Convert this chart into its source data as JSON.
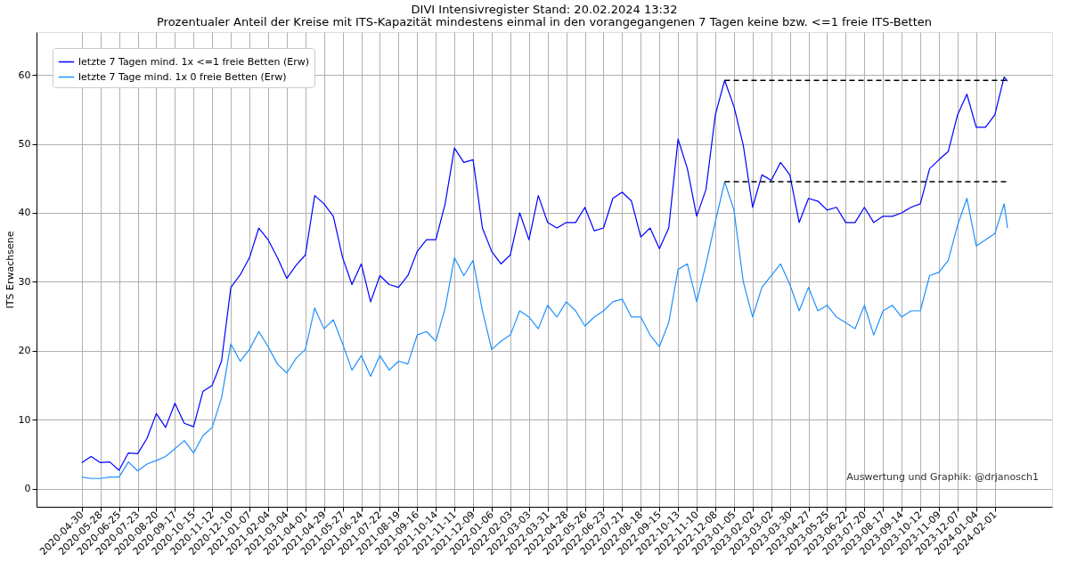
{
  "chart_data": {
    "type": "line",
    "title": "DIVI Intensivregister Stand: 20.02.2024 13:32",
    "subtitle": "Prozentualer Anteil der Kreise mit ITS-Kapazität mindestens einmal in den vorangegangenen 7 Tagen keine bzw. <=1 freie ITS-Betten",
    "ylabel": "ITS Erwachsene",
    "annotations": [
      "Auswertung und Graphik: @drjanosch1"
    ],
    "x": [
      "2020-04-30",
      "2020-05-14",
      "2020-05-28",
      "2020-06-11",
      "2020-06-25",
      "2020-07-09",
      "2020-07-23",
      "2020-08-06",
      "2020-08-20",
      "2020-09-03",
      "2020-09-17",
      "2020-10-01",
      "2020-10-15",
      "2020-10-29",
      "2020-11-12",
      "2020-11-26",
      "2020-12-10",
      "2020-12-24",
      "2021-01-07",
      "2021-01-21",
      "2021-02-04",
      "2021-02-18",
      "2021-03-04",
      "2021-03-18",
      "2021-04-01",
      "2021-04-15",
      "2021-04-29",
      "2021-05-13",
      "2021-05-27",
      "2021-06-10",
      "2021-06-24",
      "2021-07-08",
      "2021-07-22",
      "2021-08-05",
      "2021-08-19",
      "2021-09-02",
      "2021-09-16",
      "2021-09-30",
      "2021-10-14",
      "2021-10-28",
      "2021-11-11",
      "2021-11-25",
      "2021-12-09",
      "2021-12-23",
      "2022-01-06",
      "2022-01-20",
      "2022-02-03",
      "2022-02-17",
      "2022-03-03",
      "2022-03-17",
      "2022-03-31",
      "2022-04-14",
      "2022-04-28",
      "2022-05-12",
      "2022-05-26",
      "2022-06-09",
      "2022-06-23",
      "2022-07-07",
      "2022-07-21",
      "2022-08-04",
      "2022-08-18",
      "2022-09-01",
      "2022-09-15",
      "2022-09-29",
      "2022-10-13",
      "2022-10-27",
      "2022-11-10",
      "2022-11-24",
      "2022-12-08",
      "2022-12-22",
      "2023-01-05",
      "2023-01-19",
      "2023-02-02",
      "2023-02-16",
      "2023-03-02",
      "2023-03-16",
      "2023-03-30",
      "2023-04-13",
      "2023-04-27",
      "2023-05-11",
      "2023-05-25",
      "2023-06-08",
      "2023-06-22",
      "2023-07-06",
      "2023-07-20",
      "2023-08-03",
      "2023-08-17",
      "2023-08-31",
      "2023-09-14",
      "2023-09-28",
      "2023-10-12",
      "2023-10-26",
      "2023-11-09",
      "2023-11-23",
      "2023-12-07",
      "2023-12-21",
      "2024-01-04",
      "2024-01-18",
      "2024-02-01",
      "2024-02-15",
      "2024-02-20"
    ],
    "series": [
      {
        "name": "letzte 7 Tagen mind. 1x <=1 freie Betten (Erw)",
        "color": "#0000ff",
        "values": [
          3.8,
          4.7,
          3.8,
          3.9,
          2.7,
          5.2,
          5.1,
          7.3,
          10.9,
          8.9,
          12.4,
          9.5,
          9.0,
          14.1,
          15.0,
          18.5,
          29.2,
          31.0,
          33.5,
          37.8,
          36.1,
          33.5,
          30.5,
          32.4,
          33.9,
          42.5,
          41.3,
          39.5,
          33.5,
          29.6,
          32.6,
          27.1,
          30.9,
          29.6,
          29.2,
          30.9,
          34.4,
          36.1,
          36.1,
          41.3,
          49.4,
          47.3,
          47.7,
          37.8,
          34.4,
          32.6,
          33.9,
          40.0,
          36.1,
          42.5,
          38.6,
          37.8,
          38.6,
          38.6,
          40.8,
          37.4,
          37.8,
          42.1,
          43.0,
          41.7,
          36.5,
          37.8,
          34.8,
          37.8,
          50.7,
          46.4,
          39.5,
          43.4,
          54.2,
          59.2,
          55.4,
          49.8,
          40.8,
          45.5,
          44.7,
          47.3,
          45.5,
          38.6,
          42.1,
          41.7,
          40.4,
          40.8,
          38.6,
          38.6,
          40.8,
          38.6,
          39.5,
          39.5,
          40.0,
          40.8,
          41.3,
          46.4,
          47.7,
          48.9,
          54.2,
          57.2,
          52.4,
          52.4,
          54.2,
          59.7,
          59.1
        ]
      },
      {
        "name": "letzte 7 Tage mind. 1x 0 freie Betten (Erw)",
        "color": "#1e90ff",
        "values": [
          1.7,
          1.5,
          1.5,
          1.7,
          1.7,
          3.9,
          2.6,
          3.6,
          4.1,
          4.7,
          5.8,
          7.0,
          5.2,
          7.7,
          8.9,
          13.2,
          21.0,
          18.5,
          20.2,
          22.8,
          20.6,
          18.1,
          16.8,
          18.9,
          20.2,
          26.2,
          23.2,
          24.5,
          21.0,
          17.2,
          19.3,
          16.3,
          19.3,
          17.2,
          18.5,
          18.1,
          22.3,
          22.8,
          21.4,
          26.2,
          33.5,
          30.9,
          33.1,
          25.8,
          20.2,
          21.4,
          22.3,
          25.8,
          24.9,
          23.2,
          26.6,
          24.9,
          27.1,
          25.8,
          23.6,
          24.9,
          25.8,
          27.1,
          27.5,
          24.9,
          24.9,
          22.3,
          20.6,
          24.1,
          31.8,
          32.6,
          27.1,
          32.6,
          38.7,
          44.5,
          40.4,
          30.0,
          24.9,
          29.2,
          30.9,
          32.6,
          29.6,
          25.8,
          29.2,
          25.8,
          26.6,
          24.9,
          24.1,
          23.2,
          26.6,
          22.3,
          25.8,
          26.6,
          24.9,
          25.8,
          25.8,
          30.9,
          31.4,
          33.1,
          38.2,
          42.1,
          35.2,
          36.1,
          37.0,
          41.3,
          37.8
        ]
      },
      {
        "type": "line",
        "color": "#000000",
        "line_style": "dashed",
        "x": [
          "2022-12-22",
          "2024-02-20"
        ],
        "values": [
          59.2,
          59.2
        ]
      },
      {
        "type": "line",
        "color": "#000000",
        "line_style": "dashed",
        "x": [
          "2022-12-22",
          "2024-02-20"
        ],
        "values": [
          44.5,
          44.5
        ]
      }
    ],
    "xlim": [
      "2020-02-22",
      "2024-04-27"
    ],
    "xticks": [
      "2020-04-30",
      "2020-05-28",
      "2020-06-25",
      "2020-07-23",
      "2020-08-20",
      "2020-09-17",
      "2020-10-15",
      "2020-11-12",
      "2020-12-10",
      "2021-01-07",
      "2021-02-04",
      "2021-03-04",
      "2021-04-01",
      "2021-04-29",
      "2021-05-27",
      "2021-06-24",
      "2021-07-22",
      "2021-08-19",
      "2021-09-16",
      "2021-10-14",
      "2021-11-11",
      "2021-12-09",
      "2022-01-06",
      "2022-02-03",
      "2022-03-03",
      "2022-03-31",
      "2022-04-28",
      "2022-05-26",
      "2022-06-23",
      "2022-07-21",
      "2022-08-18",
      "2022-09-15",
      "2022-10-13",
      "2022-11-10",
      "2022-12-08",
      "2023-01-05",
      "2023-02-02",
      "2023-03-02",
      "2023-03-30",
      "2023-04-27",
      "2023-05-25",
      "2023-06-22",
      "2023-07-20",
      "2023-08-17",
      "2023-09-14",
      "2023-10-12",
      "2023-11-09",
      "2023-12-07",
      "2024-01-04",
      "2024-02-01"
    ],
    "ylim": [
      -2.6,
      66.2
    ],
    "yticks": [
      0,
      10,
      20,
      30,
      40,
      50,
      60
    ],
    "grid": true,
    "legend": "top left",
    "line_style": "solid",
    "marker": "none"
  }
}
